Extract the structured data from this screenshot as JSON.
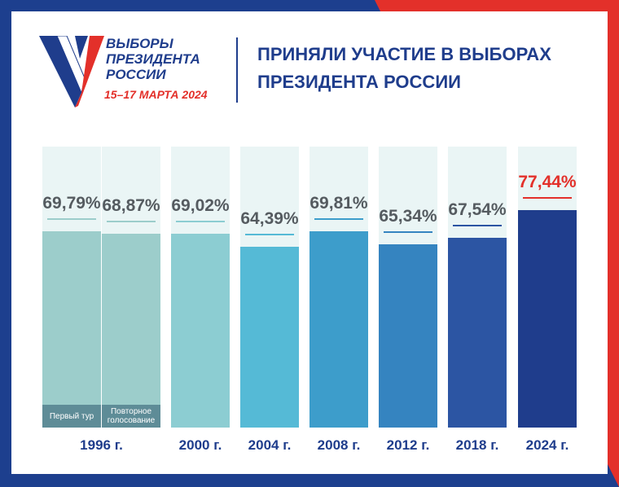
{
  "logo": {
    "lines": [
      "ВЫБОРЫ",
      "ПРЕЗИДЕНТА",
      "РОССИИ"
    ],
    "date": "15–17 МАРТА 2024"
  },
  "chart_data": {
    "type": "bar",
    "title": "ПРИНЯЛИ УЧАСТИЕ В ВЫБОРАХ ПРЕЗИДЕНТА РОССИИ",
    "group_label": "1996 г.",
    "categories": [
      null,
      null,
      "2000 г.",
      "2004 г.",
      "2008 г.",
      "2012 г.",
      "2018 г.",
      "2024 г."
    ],
    "bar_notes": [
      "Первый тур",
      "Повторное голосование",
      null,
      null,
      null,
      null,
      null,
      null
    ],
    "values": [
      69.79,
      68.87,
      69.02,
      64.39,
      69.81,
      65.34,
      67.54,
      77.44
    ],
    "value_labels": [
      "69,79%",
      "68,87%",
      "69,02%",
      "64,39%",
      "69,81%",
      "65,34%",
      "67,54%",
      "77,44%"
    ],
    "colors": [
      "#9ccdcb",
      "#9ccdcb",
      "#8ccdd2",
      "#55bad6",
      "#3d9dcb",
      "#3584c0",
      "#2c55a3",
      "#1f3d8c"
    ],
    "label_colors": [
      "#555b60",
      "#555b60",
      "#555b60",
      "#555b60",
      "#555b60",
      "#555b60",
      "#555b60",
      "#e3302a"
    ],
    "ylim": [
      0,
      100
    ]
  }
}
